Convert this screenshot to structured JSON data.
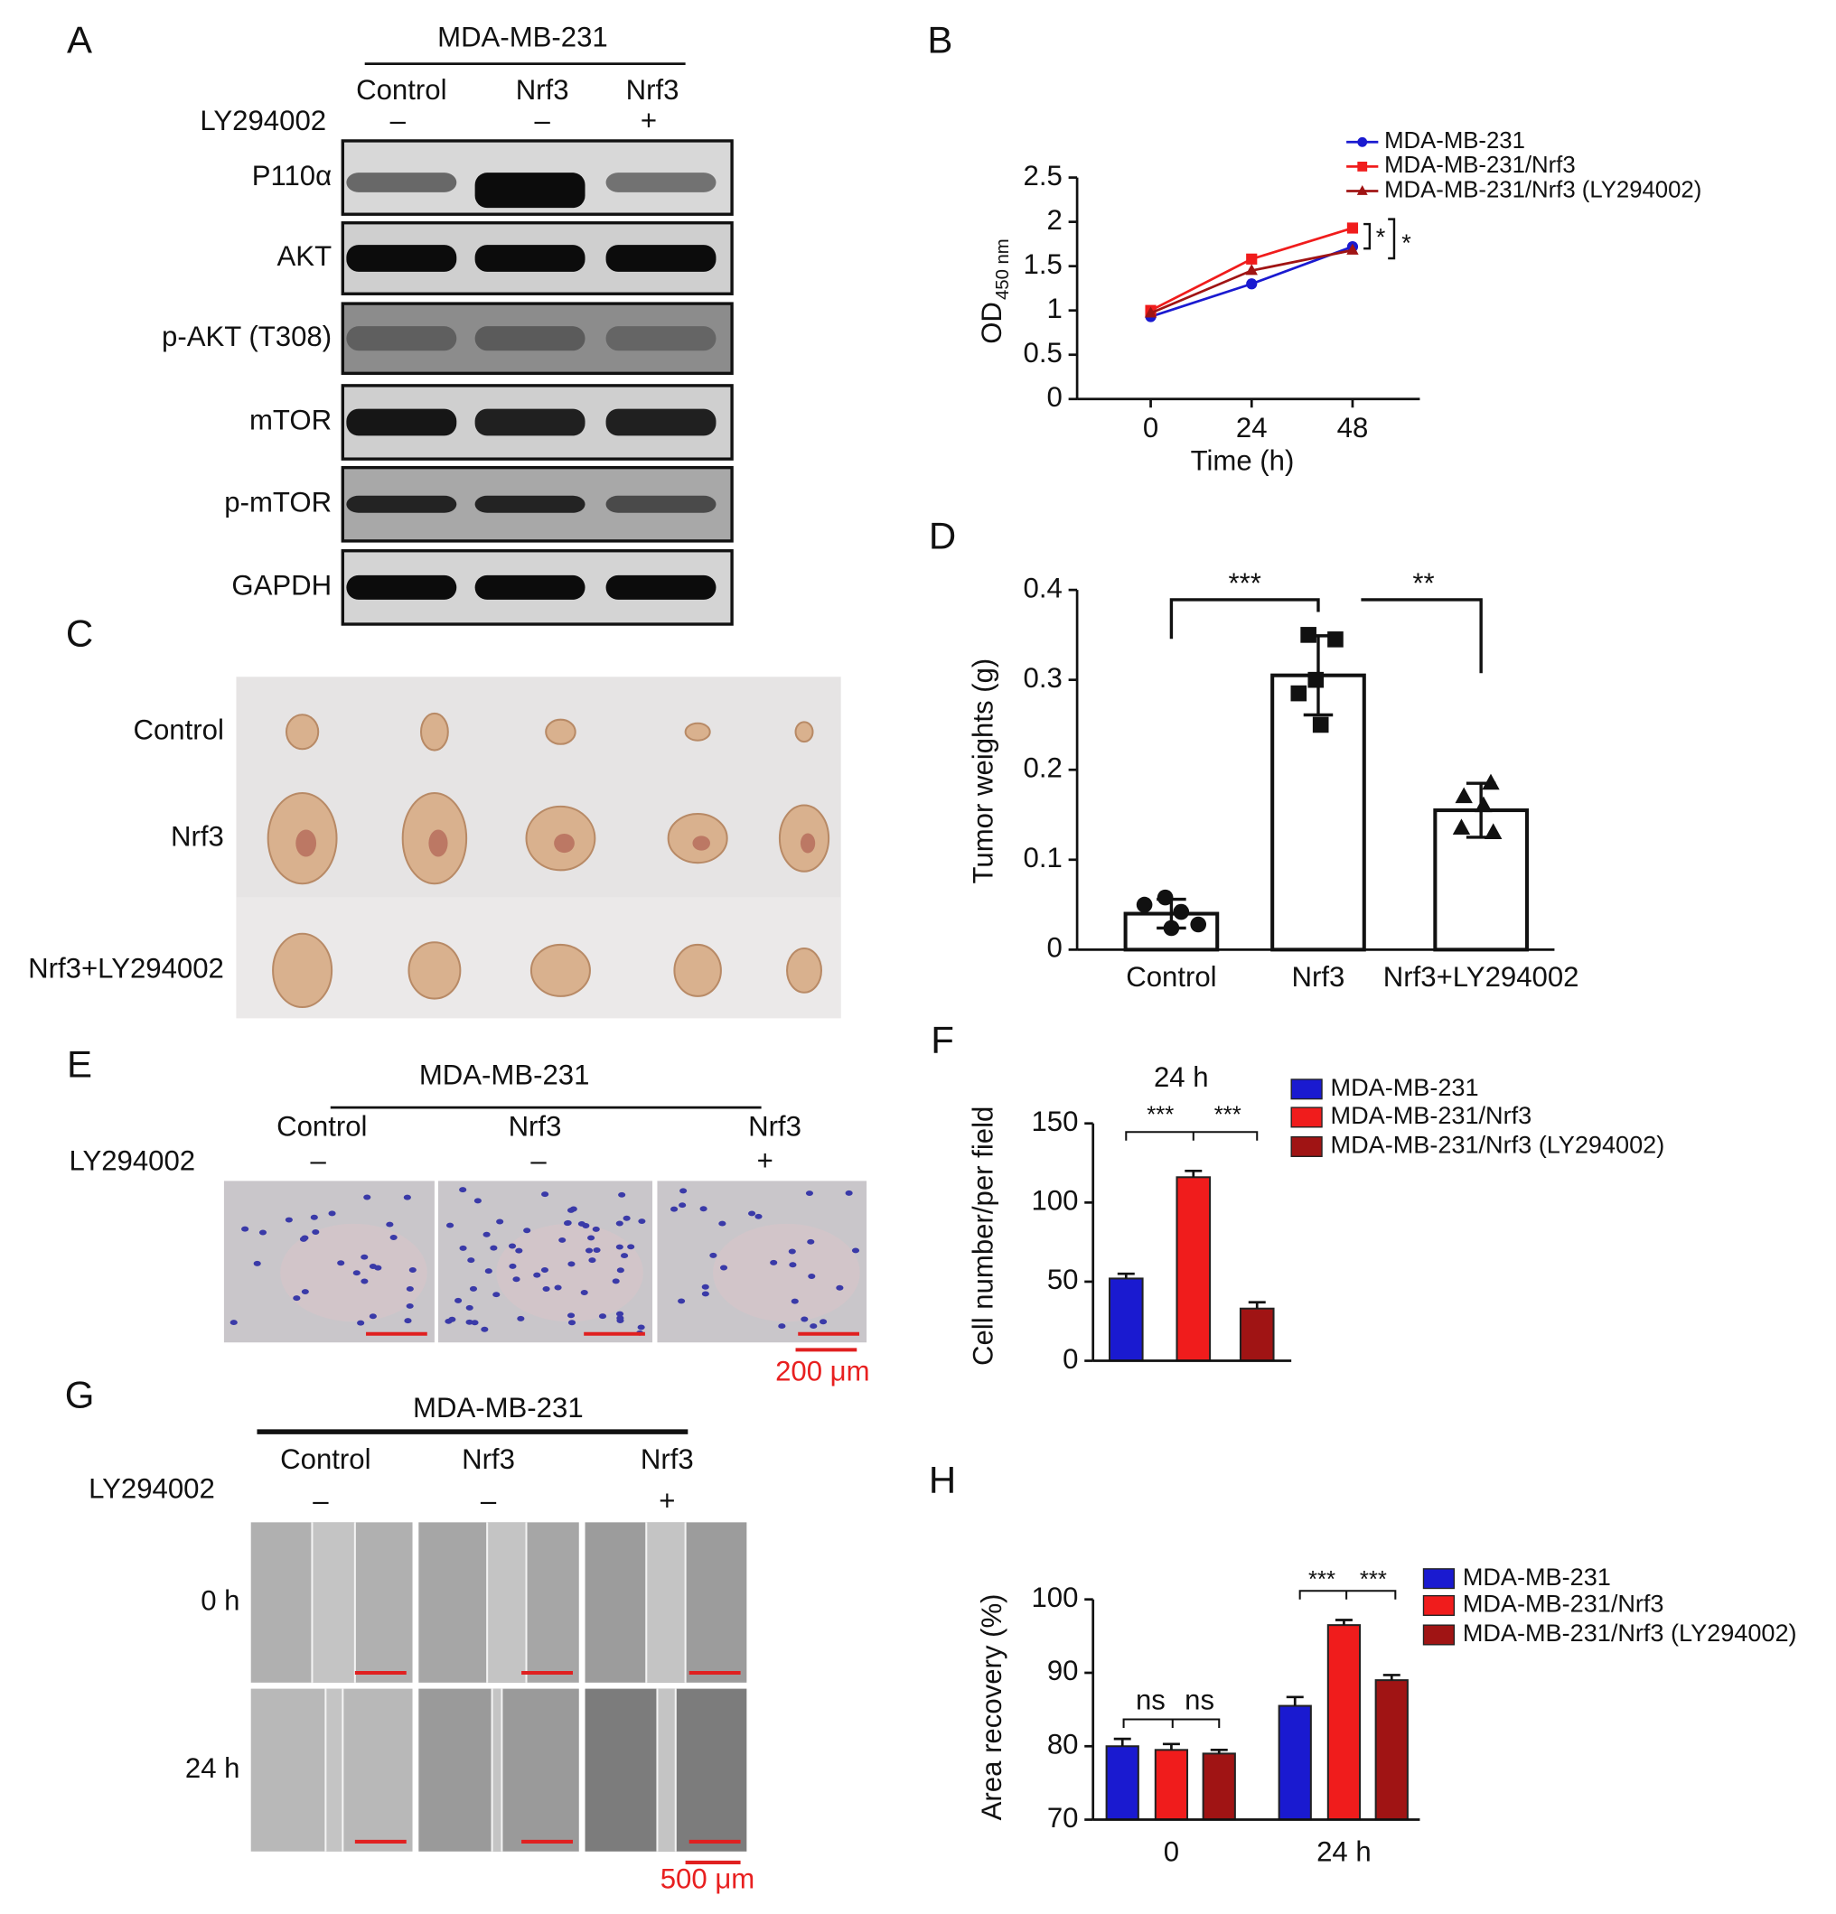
{
  "panel_labels": [
    "A",
    "B",
    "C",
    "D",
    "E",
    "F",
    "G",
    "H"
  ],
  "blot": {
    "cell_line": "MDA-MB-231",
    "groups": [
      "Control",
      "Nrf3",
      "Nrf3"
    ],
    "treatment": "LY294002",
    "signs": [
      "–",
      "–",
      "+"
    ],
    "rows": [
      "P110α",
      "AKT",
      "p-AKT (T308)",
      "mTOR",
      "p-mTOR",
      "GAPDH"
    ]
  },
  "tumors": {
    "rows": [
      "Control",
      "Nrf3",
      "Nrf3+LY294002"
    ]
  },
  "transwell": {
    "cell_line": "MDA-MB-231",
    "groups": [
      "Control",
      "Nrf3",
      "Nrf3"
    ],
    "treatment": "LY294002",
    "signs": [
      "–",
      "–",
      "+"
    ],
    "scale_bar": "200 μm"
  },
  "wound": {
    "cell_line": "MDA-MB-231",
    "groups": [
      "Control",
      "Nrf3",
      "Nrf3"
    ],
    "treatment": "LY294002",
    "signs": [
      "–",
      "–",
      "+"
    ],
    "times": [
      "0 h",
      "24 h"
    ],
    "scale_bar": "500 μm"
  },
  "chart_data": [
    {
      "type": "line",
      "x": [
        0,
        24,
        48
      ],
      "xlim": [
        -17.5,
        64
      ],
      "xticks": [
        0,
        24,
        48
      ],
      "ylim": [
        0,
        2.5
      ],
      "yticks": [
        0,
        0.5,
        1,
        1.5,
        2,
        2.5
      ],
      "x_label": "Time (h)",
      "y_label": "OD",
      "y_label_sub": "450 nm",
      "legend": "upper right",
      "annotations": [
        "*",
        "*"
      ],
      "series": [
        {
          "name": "MDA-MB-231",
          "color": "#1a1ad0",
          "marker": "circle",
          "values": [
            0.93,
            1.3,
            1.72
          ]
        },
        {
          "name": "MDA-MB-231/Nrf3",
          "color": "#f01c1c",
          "marker": "square",
          "values": [
            1.0,
            1.58,
            1.93
          ]
        },
        {
          "name": "MDA-MB-231/Nrf3 (LY294002)",
          "color": "#a01414",
          "marker": "triangle",
          "values": [
            0.97,
            1.45,
            1.68
          ]
        }
      ]
    },
    {
      "type": "bar",
      "categories": [
        "Control",
        "Nrf3",
        "Nrf3+LY294002"
      ],
      "values": [
        0.04,
        0.305,
        0.155
      ],
      "errors": [
        0.016,
        0.044,
        0.03
      ],
      "points": [
        [
          0.058,
          0.05,
          0.042,
          0.028,
          0.024
        ],
        [
          0.35,
          0.345,
          0.3,
          0.285,
          0.25
        ],
        [
          0.185,
          0.17,
          0.16,
          0.135,
          0.13
        ]
      ],
      "color": "#ffffff",
      "ylim": [
        0,
        0.4
      ],
      "yticks": [
        0,
        0.1,
        0.2,
        0.3,
        0.4
      ],
      "y_label": "Tumor weights (g)",
      "annotations": [
        "***",
        "**"
      ]
    },
    {
      "type": "grouped_bar",
      "categories": [
        "24 h"
      ],
      "series": [
        {
          "name": "MDA-MB-231",
          "color": "#1a1ad0",
          "values": [
            52
          ],
          "errors": [
            3
          ]
        },
        {
          "name": "MDA-MB-231/Nrf3",
          "color": "#f01c1c",
          "values": [
            116
          ],
          "errors": [
            4
          ]
        },
        {
          "name": "MDA-MB-231/Nrf3 (LY294002)",
          "color": "#a01414",
          "values": [
            33
          ],
          "errors": [
            4
          ]
        }
      ],
      "ylim": [
        0,
        150
      ],
      "yticks": [
        0,
        50,
        100,
        150
      ],
      "y_label": "Cell number/per field",
      "legend": "right",
      "annotations": [
        "***",
        "***"
      ]
    },
    {
      "type": "grouped_bar",
      "categories": [
        "0",
        "24 h"
      ],
      "series": [
        {
          "name": "MDA-MB-231",
          "color": "#1a1ad0",
          "values": [
            80,
            85.5
          ],
          "errors": [
            1,
            1.2
          ]
        },
        {
          "name": "MDA-MB-231/Nrf3",
          "color": "#f01c1c",
          "values": [
            79.5,
            96.5
          ],
          "errors": [
            0.8,
            0.7
          ]
        },
        {
          "name": "MDA-MB-231/Nrf3 (LY294002)",
          "color": "#a01414",
          "values": [
            79,
            89
          ],
          "errors": [
            0.5,
            0.7
          ]
        }
      ],
      "ylim": [
        70,
        100
      ],
      "yticks": [
        70,
        80,
        90,
        100
      ],
      "y_label": "Area recovery (%)",
      "legend": "right",
      "annotations": [
        "ns",
        "ns",
        "***",
        "***"
      ]
    }
  ]
}
